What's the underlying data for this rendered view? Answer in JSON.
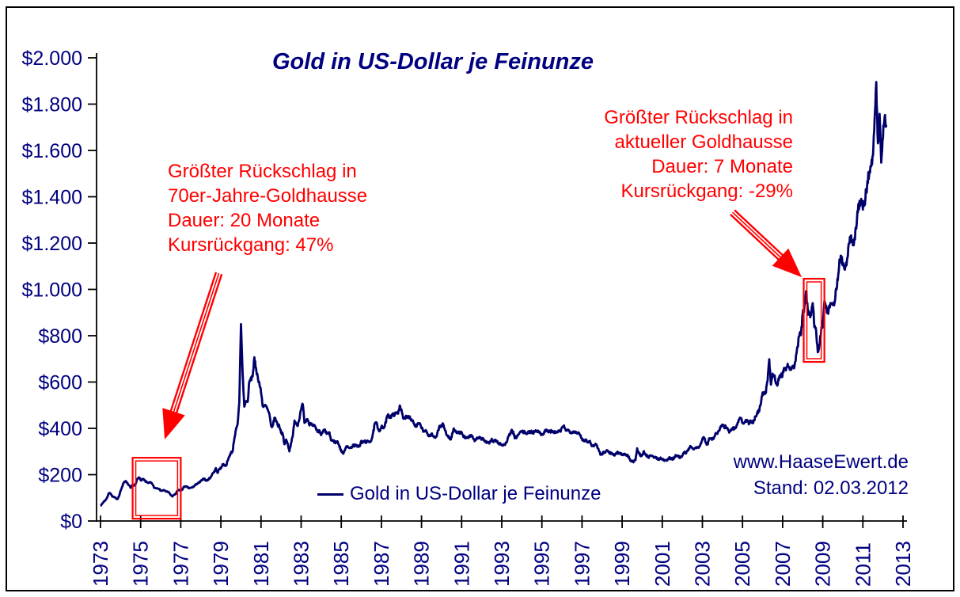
{
  "title": "Gold in US-Dollar je Feinunze",
  "legend": {
    "label": "Gold in US-Dollar je Feinunze"
  },
  "watermark": {
    "line1": "www.HaaseEwert.de",
    "line2": "Stand: 02.03.2012"
  },
  "annotations": {
    "left": {
      "lines": [
        "Größter Rückschlag in",
        "70er-Jahre-Goldhausse",
        "Dauer: 20 Monate",
        "Kursrückgang: 47%"
      ]
    },
    "right": {
      "lines": [
        "Größter Rückschlag in",
        "aktueller Goldhausse",
        "Dauer: 7 Monate",
        "Kursrückgang: -29%"
      ]
    }
  },
  "colors": {
    "line": "#00006b",
    "navy_text": "#000080",
    "axis": "#000000",
    "red": "#ff0000",
    "background": "#ffffff"
  },
  "chart_data": {
    "type": "line",
    "title": "Gold in US-Dollar je Feinunze",
    "series_name": "Gold in US-Dollar je Feinunze",
    "xlabel": "",
    "ylabel": "",
    "grid": false,
    "legend_position": "bottom-center",
    "xlim": [
      1973,
      2013
    ],
    "ylim": [
      0,
      2000
    ],
    "x_ticks": [
      1973,
      1975,
      1977,
      1979,
      1981,
      1983,
      1985,
      1987,
      1989,
      1991,
      1993,
      1995,
      1997,
      1999,
      2001,
      2003,
      2005,
      2007,
      2009,
      2011,
      2013
    ],
    "y_ticks": [
      {
        "value": 0,
        "label": "$0"
      },
      {
        "value": 200,
        "label": "$200"
      },
      {
        "value": 400,
        "label": "$400"
      },
      {
        "value": 600,
        "label": "$600"
      },
      {
        "value": 800,
        "label": "$800"
      },
      {
        "value": 1000,
        "label": "$1.000"
      },
      {
        "value": 1200,
        "label": "$1.200"
      },
      {
        "value": 1400,
        "label": "$1.400"
      },
      {
        "value": 1600,
        "label": "$1.600"
      },
      {
        "value": 1800,
        "label": "$1.800"
      },
      {
        "value": 2000,
        "label": "$2.000"
      }
    ],
    "x_start_year": 1973,
    "frequency": "monthly",
    "x_note": "monthly gold price (USD per troy ounce), Jan 1973 - Mar 2012",
    "values": [
      65,
      74,
      84,
      90,
      102,
      120,
      120,
      106,
      103,
      100,
      94,
      106,
      129,
      150,
      168,
      172,
      163,
      154,
      143,
      155,
      152,
      159,
      181,
      190,
      176,
      180,
      178,
      170,
      167,
      164,
      166,
      160,
      144,
      142,
      142,
      139,
      131,
      131,
      133,
      128,
      127,
      123,
      112,
      106,
      114,
      116,
      131,
      134,
      132,
      136,
      149,
      149,
      146,
      141,
      143,
      146,
      150,
      158,
      162,
      165,
      173,
      178,
      184,
      175,
      176,
      184,
      189,
      206,
      212,
      227,
      206,
      226,
      227,
      245,
      242,
      239,
      258,
      279,
      294,
      301,
      355,
      392,
      415,
      512,
      850,
      637,
      494,
      518,
      513,
      600,
      614,
      627,
      700,
      661,
      623,
      595,
      557,
      499,
      498,
      495,
      480,
      460,
      409,
      410,
      444,
      437,
      413,
      410,
      384,
      374,
      330,
      350,
      333,
      302,
      339,
      364,
      436,
      422,
      415,
      444,
      481,
      505,
      420,
      433,
      438,
      413,
      422,
      416,
      412,
      394,
      381,
      389,
      371,
      386,
      394,
      381,
      377,
      378,
      347,
      348,
      341,
      340,
      341,
      320,
      303,
      292,
      304,
      325,
      317,
      317,
      317,
      329,
      324,
      326,
      325,
      321,
      345,
      339,
      346,
      340,
      343,
      343,
      349,
      376,
      418,
      424,
      399,
      391,
      408,
      401,
      408,
      439,
      461,
      449,
      451,
      461,
      460,
      466,
      467,
      499,
      477,
      442,
      444,
      452,
      451,
      451,
      437,
      431,
      412,
      407,
      420,
      418,
      404,
      387,
      390,
      384,
      371,
      367,
      375,
      365,
      361,
      367,
      394,
      409,
      410,
      417,
      393,
      374,
      369,
      352,
      362,
      395,
      389,
      380,
      382,
      378,
      384,
      364,
      363,
      358,
      357,
      368,
      367,
      356,
      348,
      359,
      360,
      361,
      354,
      354,
      344,
      338,
      337,
      340,
      353,
      343,
      349,
      344,
      335,
      334,
      329,
      329,
      330,
      342,
      367,
      372,
      392,
      379,
      355,
      364,
      373,
      383,
      387,
      382,
      384,
      377,
      381,
      386,
      385,
      380,
      391,
      390,
      384,
      379,
      375,
      376,
      392,
      391,
      385,
      388,
      386,
      384,
      383,
      384,
      386,
      387,
      400,
      410,
      396,
      392,
      392,
      385,
      383,
      387,
      383,
      381,
      378,
      369,
      355,
      346,
      352,
      344,
      343,
      341,
      324,
      324,
      332,
      325,
      306,
      288,
      289,
      297,
      296,
      308,
      299,
      292,
      293,
      284,
      289,
      296,
      294,
      291,
      287,
      287,
      286,
      283,
      277,
      261,
      256,
      257,
      264,
      311,
      293,
      283,
      284,
      300,
      286,
      280,
      275,
      286,
      282,
      274,
      274,
      270,
      266,
      272,
      266,
      262,
      263,
      261,
      272,
      270,
      268,
      272,
      284,
      283,
      276,
      276,
      282,
      295,
      294,
      303,
      314,
      321,
      313,
      310,
      319,
      317,
      319,
      333,
      357,
      359,
      340,
      328,
      355,
      356,
      351,
      360,
      379,
      379,
      390,
      407,
      414,
      405,
      407,
      403,
      384,
      392,
      398,
      401,
      405,
      420,
      439,
      442,
      424,
      423,
      434,
      429,
      422,
      431,
      424,
      437,
      456,
      470,
      477,
      510,
      550,
      555,
      557,
      611,
      700,
      590,
      634,
      632,
      598,
      586,
      628,
      630,
      631,
      665,
      655,
      680,
      667,
      656,
      665,
      666,
      713,
      755,
      806,
      804,
      890,
      922,
      1000,
      910,
      889,
      889,
      940,
      839,
      830,
      730,
      760,
      816,
      858,
      943,
      924,
      890,
      929,
      946,
      934,
      949,
      996,
      1043,
      1127,
      1135,
      1118,
      1095,
      1113,
      1149,
      1205,
      1233,
      1193,
      1216,
      1271,
      1342,
      1370,
      1391,
      1356,
      1373,
      1424,
      1473,
      1512,
      1529,
      1573,
      1750,
      1895,
      1620,
      1750,
      1560,
      1660,
      1760,
      1710
    ],
    "highlight_boxes": [
      {
        "name": "70s-correction-box",
        "year_range": [
          1974.6,
          1977.0
        ],
        "usd_range": [
          10,
          273
        ]
      },
      {
        "name": "2008-correction-box",
        "year_range": [
          2008.05,
          2009.08
        ],
        "usd_range": [
          687,
          1046
        ]
      }
    ],
    "arrows": [
      {
        "name": "arrow-to-70s-correction",
        "from_year": 1978.9,
        "from_usd": 1070,
        "to_year": 1976.2,
        "to_usd": 352
      },
      {
        "name": "arrow-to-2008-correction",
        "from_year": 2004.5,
        "from_usd": 1333,
        "to_year": 2007.95,
        "to_usd": 1053
      }
    ]
  }
}
